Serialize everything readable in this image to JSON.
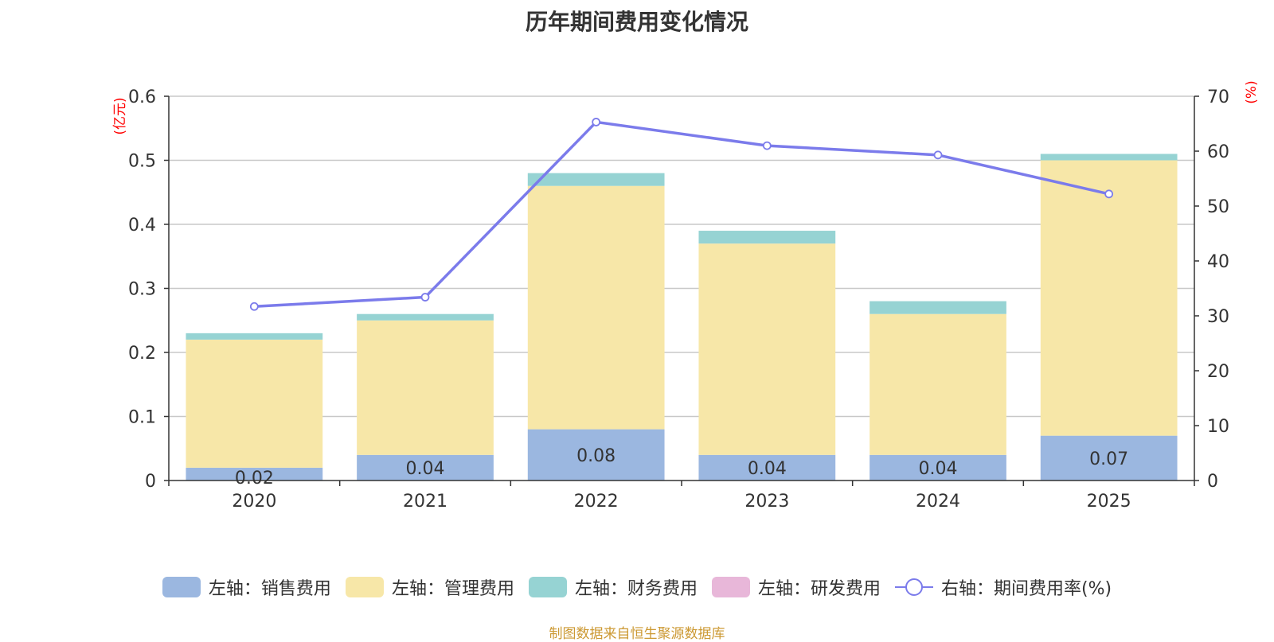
{
  "title": "历年期间费用变化情况",
  "source": "制图数据来自恒生聚源数据库",
  "chart_data": {
    "type": "bar",
    "stacked": true,
    "categories": [
      "2020",
      "2021",
      "2022",
      "2023",
      "2024",
      "2025"
    ],
    "left_axis": {
      "unit": "(亿元)",
      "min": 0,
      "max": 0.6,
      "ticks": [
        "0",
        "0.1",
        "0.2",
        "0.3",
        "0.4",
        "0.5",
        "0.6"
      ]
    },
    "right_axis": {
      "unit": "(%)",
      "min": 0,
      "max": 70,
      "ticks": [
        "0",
        "10",
        "20",
        "30",
        "40",
        "50",
        "60",
        "70"
      ]
    },
    "series": [
      {
        "name": "左轴：销售费用",
        "axis": "left",
        "type": "bar",
        "color": "#9bb7e0",
        "values": [
          0.02,
          0.04,
          0.08,
          0.04,
          0.04,
          0.07
        ],
        "labels": [
          "0.02",
          "0.04",
          "0.08",
          "0.04",
          "0.04",
          "0.07"
        ]
      },
      {
        "name": "左轴：管理费用",
        "axis": "left",
        "type": "bar",
        "color": "#f7e7a8",
        "values": [
          0.2,
          0.21,
          0.38,
          0.33,
          0.22,
          0.43
        ]
      },
      {
        "name": "左轴：财务费用",
        "axis": "left",
        "type": "bar",
        "color": "#96d3d3",
        "values": [
          0.01,
          0.01,
          0.02,
          0.02,
          0.02,
          0.01
        ]
      },
      {
        "name": "左轴：研发费用",
        "axis": "left",
        "type": "bar",
        "color": "#e8b7d9",
        "values": [
          0,
          0,
          0,
          0,
          0,
          0
        ]
      },
      {
        "name": "右轴：期间费用率(%)",
        "axis": "right",
        "type": "line",
        "color": "#7b7beb",
        "values": [
          31.7,
          33.4,
          65.3,
          61.0,
          59.3,
          52.2
        ]
      }
    ],
    "grid": true,
    "legend_position": "bottom"
  }
}
